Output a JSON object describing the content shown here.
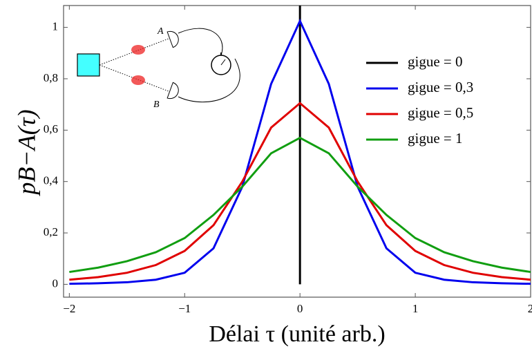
{
  "chart_data": {
    "type": "line",
    "xlabel": "Délai τ (unité arb.)",
    "ylabel": "pB−A(τ)",
    "x": [
      -2,
      -1.75,
      -1.5,
      -1.25,
      -1,
      -0.75,
      -0.5,
      -0.25,
      0,
      0.25,
      0.5,
      0.75,
      1,
      1.25,
      1.5,
      1.75,
      2
    ],
    "series": [
      {
        "name": "gigue = 0",
        "color": "#000000",
        "x": [
          0,
          0
        ],
        "values": [
          0,
          1.085
        ]
      },
      {
        "name": "gigue = 0,3",
        "color": "#0000ee",
        "values": [
          0.002,
          0.004,
          0.008,
          0.018,
          0.045,
          0.14,
          0.38,
          0.78,
          1.025,
          0.78,
          0.38,
          0.14,
          0.045,
          0.018,
          0.008,
          0.004,
          0.002
        ]
      },
      {
        "name": "gigue = 0,5",
        "color": "#e00000",
        "values": [
          0.018,
          0.028,
          0.045,
          0.075,
          0.13,
          0.23,
          0.4,
          0.61,
          0.705,
          0.61,
          0.4,
          0.23,
          0.13,
          0.075,
          0.045,
          0.028,
          0.018
        ]
      },
      {
        "name": "gigue = 1",
        "color": "#119e11",
        "values": [
          0.048,
          0.065,
          0.09,
          0.125,
          0.18,
          0.27,
          0.38,
          0.51,
          0.57,
          0.51,
          0.38,
          0.27,
          0.18,
          0.125,
          0.09,
          0.065,
          0.048
        ]
      }
    ],
    "xlim": [
      -2.05,
      2
    ],
    "ylim": [
      -0.05,
      1.085
    ],
    "xticks": [
      {
        "value": -2,
        "label": "−2"
      },
      {
        "value": -1,
        "label": "−1"
      },
      0,
      1,
      2
    ],
    "yticks": [
      0,
      {
        "value": 0.2,
        "label": "0,2"
      },
      {
        "value": 0.4,
        "label": "0,4"
      },
      {
        "value": 0.6,
        "label": "0,6"
      },
      {
        "value": 0.8,
        "label": "0,8"
      },
      1
    ],
    "legend": "upper right",
    "inset_labels": [
      "A",
      "B"
    ]
  }
}
